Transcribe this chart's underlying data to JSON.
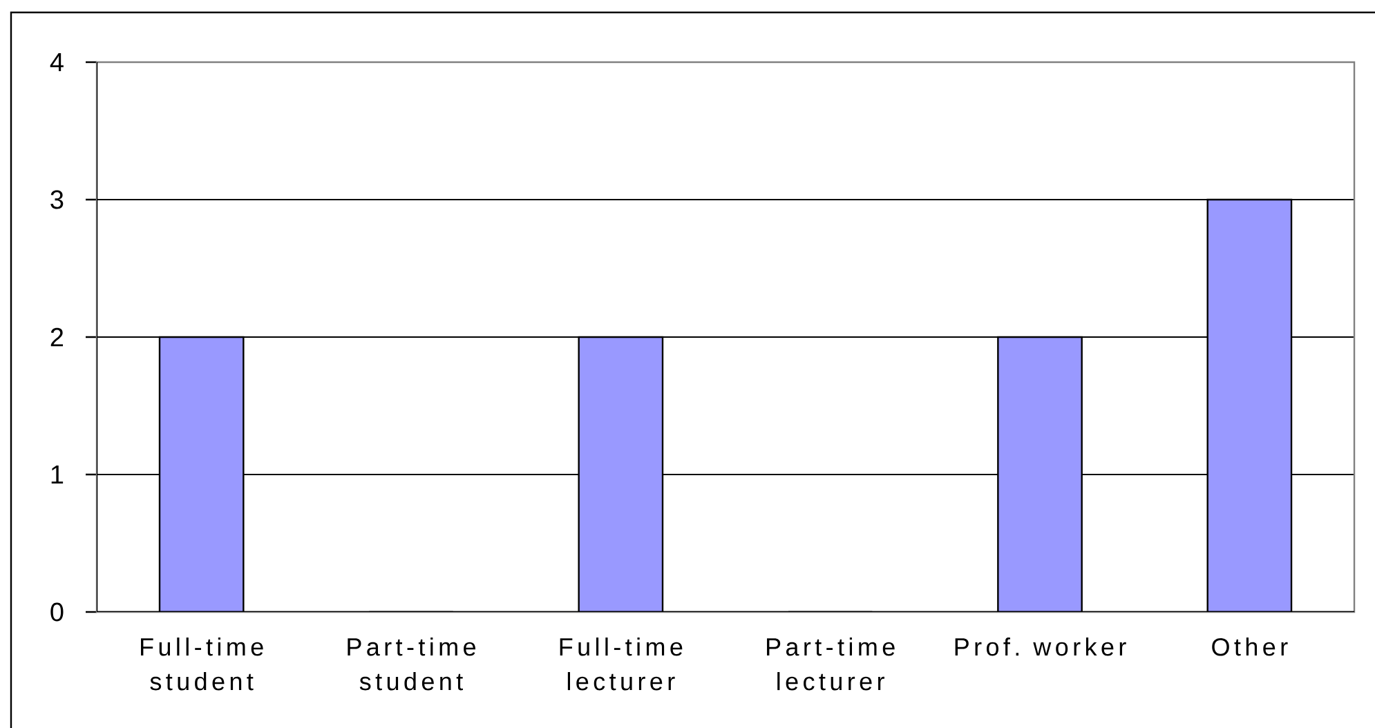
{
  "chart_data": {
    "type": "bar",
    "categories": [
      "Full-time student",
      "Part-time student",
      "Full-time lecturer",
      "Part-time lecturer",
      "Prof. worker",
      "Other"
    ],
    "values": [
      2,
      0,
      2,
      0,
      2,
      3
    ],
    "color": "#9999ff",
    "ylim": [
      0,
      4
    ],
    "yticks": [
      0,
      1,
      2,
      3,
      4
    ],
    "grid": "y"
  }
}
